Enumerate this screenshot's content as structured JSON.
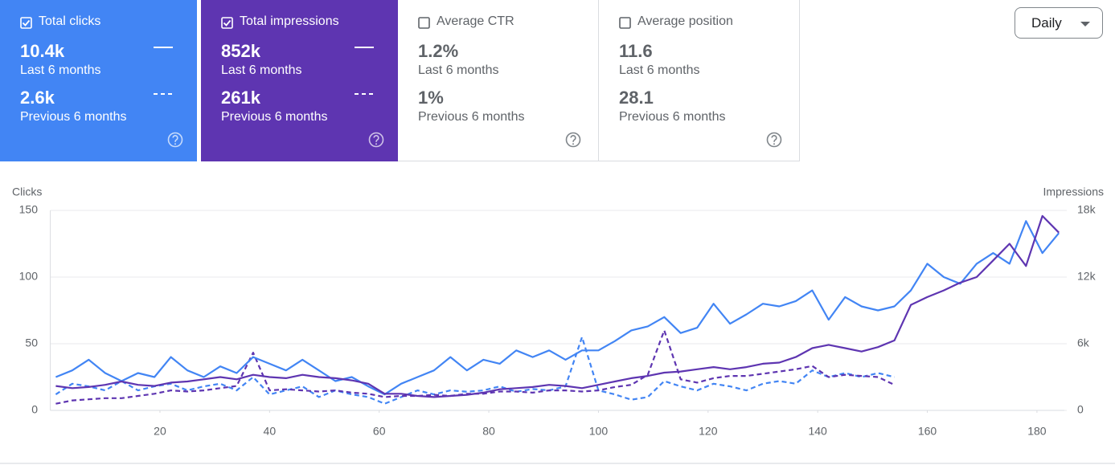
{
  "metrics": [
    {
      "label": "Total clicks",
      "checked": true,
      "color": "#4285f4",
      "value": "10.4k",
      "period": "Last 6 months",
      "previous_value": "2.6k",
      "previous_period": "Previous 6 months"
    },
    {
      "label": "Total impressions",
      "checked": true,
      "color": "#5e35b1",
      "value": "852k",
      "period": "Last 6 months",
      "previous_value": "261k",
      "previous_period": "Previous 6 months"
    },
    {
      "label": "Average CTR",
      "checked": false,
      "value": "1.2%",
      "period": "Last 6 months",
      "previous_value": "1%",
      "previous_period": "Previous 6 months"
    },
    {
      "label": "Average position",
      "checked": false,
      "value": "11.6",
      "period": "Last 6 months",
      "previous_value": "28.1",
      "previous_period": "Previous 6 months"
    }
  ],
  "dropdown": "Daily",
  "chart_data": {
    "type": "line",
    "ylabel": "Clicks",
    "y2label": "Impressions",
    "x": [
      1,
      4,
      7,
      10,
      13,
      16,
      19,
      22,
      25,
      28,
      31,
      34,
      37,
      40,
      43,
      46,
      49,
      52,
      55,
      58,
      61,
      64,
      67,
      70,
      73,
      76,
      79,
      82,
      85,
      88,
      91,
      94,
      97,
      100,
      103,
      106,
      109,
      112,
      115,
      118,
      121,
      124,
      127,
      130,
      133,
      136,
      139,
      142,
      145,
      148,
      151,
      154,
      157,
      160,
      163,
      166,
      169,
      172,
      175,
      178,
      181,
      184
    ],
    "series": [
      {
        "color": "#4285f4",
        "dashed": false,
        "axis": "y",
        "values": [
          25,
          30,
          38,
          28,
          22,
          28,
          25,
          40,
          30,
          25,
          33,
          28,
          40,
          35,
          30,
          38,
          30,
          22,
          25,
          18,
          12,
          20,
          25,
          30,
          40,
          30,
          38,
          35,
          45,
          40,
          45,
          38,
          45,
          45,
          52,
          60,
          63,
          70,
          58,
          62,
          80,
          65,
          72,
          80,
          78,
          82,
          90,
          68,
          85,
          78,
          75,
          78,
          90,
          110,
          100,
          95,
          110,
          118,
          110,
          142,
          118,
          133
        ]
      },
      {
        "color": "#4285f4",
        "dashed": true,
        "axis": "y",
        "values": [
          12,
          20,
          18,
          15,
          22,
          15,
          18,
          20,
          15,
          18,
          20,
          15,
          25,
          12,
          15,
          18,
          10,
          15,
          12,
          10,
          5,
          10,
          15,
          12,
          15,
          14,
          15,
          18,
          14,
          16,
          15,
          18,
          55,
          15,
          12,
          8,
          10,
          22,
          18,
          15,
          20,
          18,
          15,
          20,
          22,
          20,
          30,
          25,
          28,
          25,
          28,
          25,
          null,
          null,
          null,
          null,
          null,
          null,
          null,
          null,
          null,
          null
        ]
      },
      {
        "color": "#5e35b1",
        "dashed": false,
        "axis": "y2",
        "values": [
          2200,
          2000,
          2100,
          2300,
          2600,
          2300,
          2200,
          2500,
          2600,
          2800,
          3000,
          2800,
          3200,
          3000,
          2900,
          3200,
          3000,
          2900,
          2700,
          2400,
          1500,
          1500,
          1300,
          1200,
          1300,
          1400,
          1600,
          1900,
          2000,
          2100,
          2300,
          2200,
          2000,
          2300,
          2600,
          2900,
          3100,
          3400,
          3500,
          3700,
          3900,
          3700,
          3900,
          4200,
          4300,
          4800,
          5600,
          5900,
          5600,
          5300,
          5700,
          6300,
          9500,
          10200,
          10800,
          11500,
          12000,
          13500,
          15000,
          13000,
          17500,
          16000
        ]
      },
      {
        "color": "#5e35b1",
        "dashed": true,
        "axis": "y2",
        "values": [
          600,
          900,
          1000,
          1100,
          1100,
          1300,
          1500,
          1800,
          1700,
          1800,
          2000,
          2200,
          5200,
          1800,
          1900,
          1800,
          1700,
          1800,
          1600,
          1500,
          1200,
          1300,
          1300,
          1400,
          1300,
          1500,
          1500,
          1700,
          1700,
          1600,
          1800,
          1800,
          1700,
          1800,
          2100,
          2300,
          3200,
          7200,
          2800,
          2500,
          2900,
          3100,
          3100,
          3300,
          3500,
          3700,
          4000,
          3000,
          3200,
          3100,
          3000,
          2300,
          null,
          null,
          null,
          null,
          null,
          null,
          null,
          null,
          null,
          null
        ]
      }
    ],
    "xlim": [
      0,
      185
    ],
    "xticks": [
      20,
      40,
      60,
      80,
      100,
      120,
      140,
      160,
      180
    ],
    "ylim": [
      0,
      150
    ],
    "yticks": [
      0,
      50,
      100,
      150
    ],
    "y2lim": [
      0,
      18000
    ],
    "y2ticks": [
      0,
      {
        "value": 6000,
        "label": "6k"
      },
      {
        "value": 12000,
        "label": "12k"
      },
      {
        "value": 18000,
        "label": "18k"
      }
    ],
    "grid": true
  }
}
